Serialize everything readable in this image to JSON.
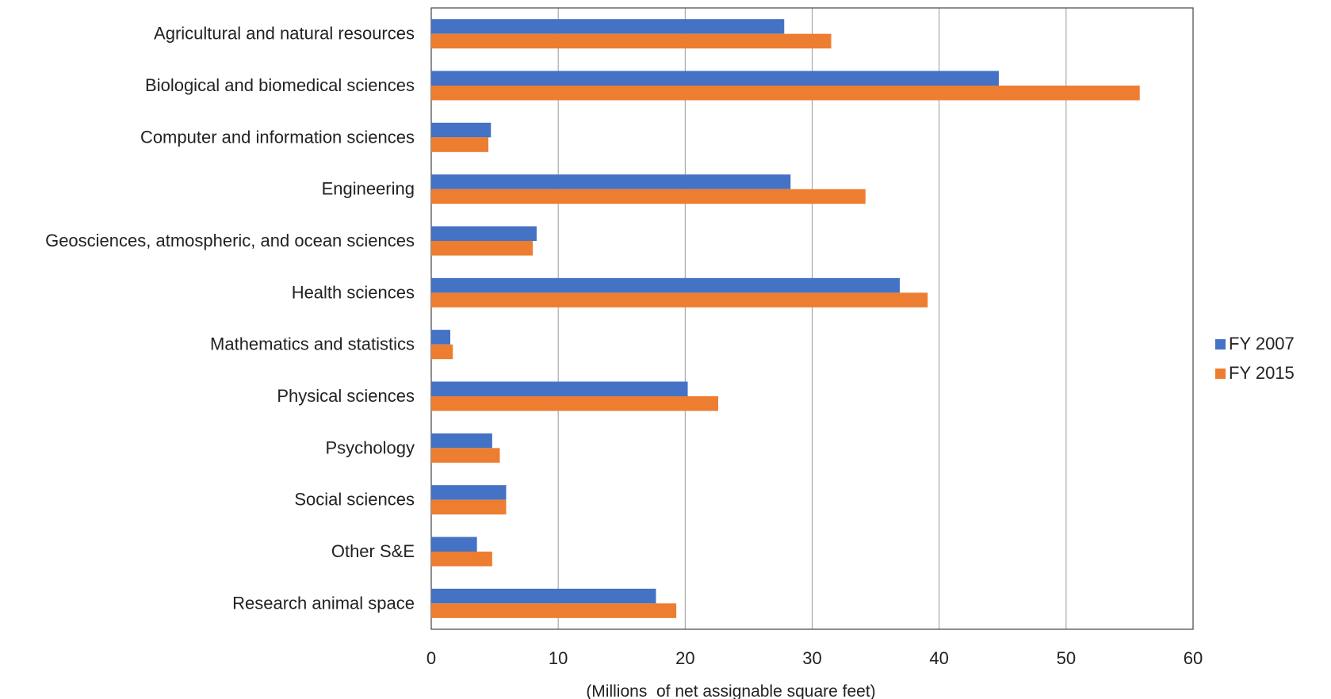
{
  "chart_data": {
    "type": "bar",
    "orientation": "horizontal",
    "categories": [
      "Agricultural and natural resources",
      "Biological and biomedical sciences",
      "Computer and information sciences",
      "Engineering",
      "Geosciences, atmospheric, and ocean sciences",
      "Health sciences",
      "Mathematics and statistics",
      "Physical sciences",
      "Psychology",
      "Social sciences",
      "Other S&E",
      "Research animal space"
    ],
    "series": [
      {
        "name": "FY 2007",
        "color": "#4472C4",
        "values": [
          27.8,
          44.7,
          4.7,
          28.3,
          8.3,
          36.9,
          1.5,
          20.2,
          4.8,
          5.9,
          3.6,
          17.7
        ]
      },
      {
        "name": "FY 2015",
        "color": "#ED7D31",
        "values": [
          31.5,
          55.8,
          4.5,
          34.2,
          8.0,
          39.1,
          1.7,
          22.6,
          5.4,
          5.9,
          4.8,
          19.3
        ]
      }
    ],
    "xlabel": "(Millions  of net assignable square feet)",
    "xlim": [
      0,
      60
    ],
    "xticks": [
      0,
      10,
      20,
      30,
      40,
      50,
      60
    ],
    "grid": "vertical",
    "legend_position": "right"
  }
}
